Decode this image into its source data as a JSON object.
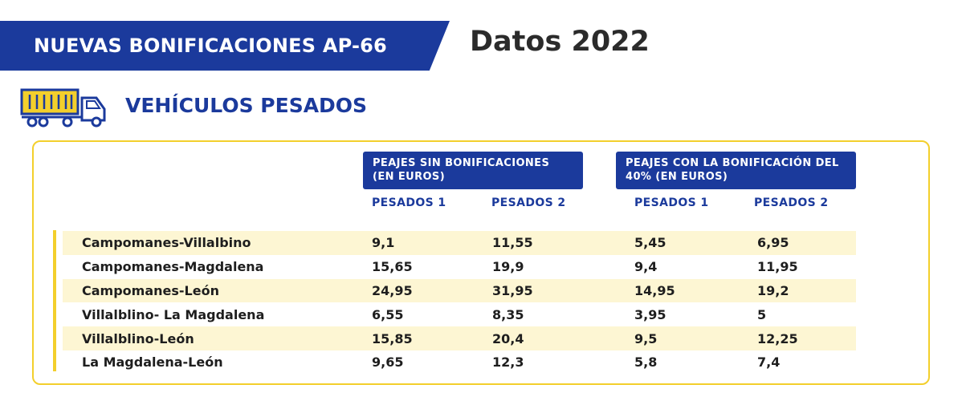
{
  "header": {
    "banner_title": "NUEVAS BONIFICACIONES AP-66",
    "year_title": "Datos 2022"
  },
  "section": {
    "icon": "truck-icon",
    "title": "VEHÍCULOS PESADOS"
  },
  "table": {
    "group_headers": [
      "PEAJES SIN BONIFICACIONES (EN EUROS)",
      "PEAJES CON LA BONIFICACIÓN DEL 40% (EN EUROS)"
    ],
    "columns": [
      "PESADOS 1",
      "PESADOS 2",
      "PESADOS 1",
      "PESADOS 2"
    ],
    "rows": [
      {
        "route": "Campomanes-Villalbino",
        "v1": "9,1",
        "v2": "11,55",
        "v3": "5,45",
        "v4": "6,95"
      },
      {
        "route": "Campomanes-Magdalena",
        "v1": "15,65",
        "v2": "19,9",
        "v3": "9,4",
        "v4": "11,95"
      },
      {
        "route": "Campomanes-León",
        "v1": "24,95",
        "v2": "31,95",
        "v3": "14,95",
        "v4": "19,2"
      },
      {
        "route": "Villalblino- La Magdalena",
        "v1": "6,55",
        "v2": "8,35",
        "v3": "3,95",
        "v4": "5"
      },
      {
        "route": "Villalblino-León",
        "v1": "15,85",
        "v2": "20,4",
        "v3": "9,5",
        "v4": "12,25"
      },
      {
        "route": "La Magdalena-León",
        "v1": "9,65",
        "v2": "12,3",
        "v3": "5,8",
        "v4": "7,4"
      }
    ]
  },
  "colors": {
    "brand_blue": "#1b3a9c",
    "accent_yellow": "#f3cf2c",
    "row_shade": "#fdf6d3"
  }
}
